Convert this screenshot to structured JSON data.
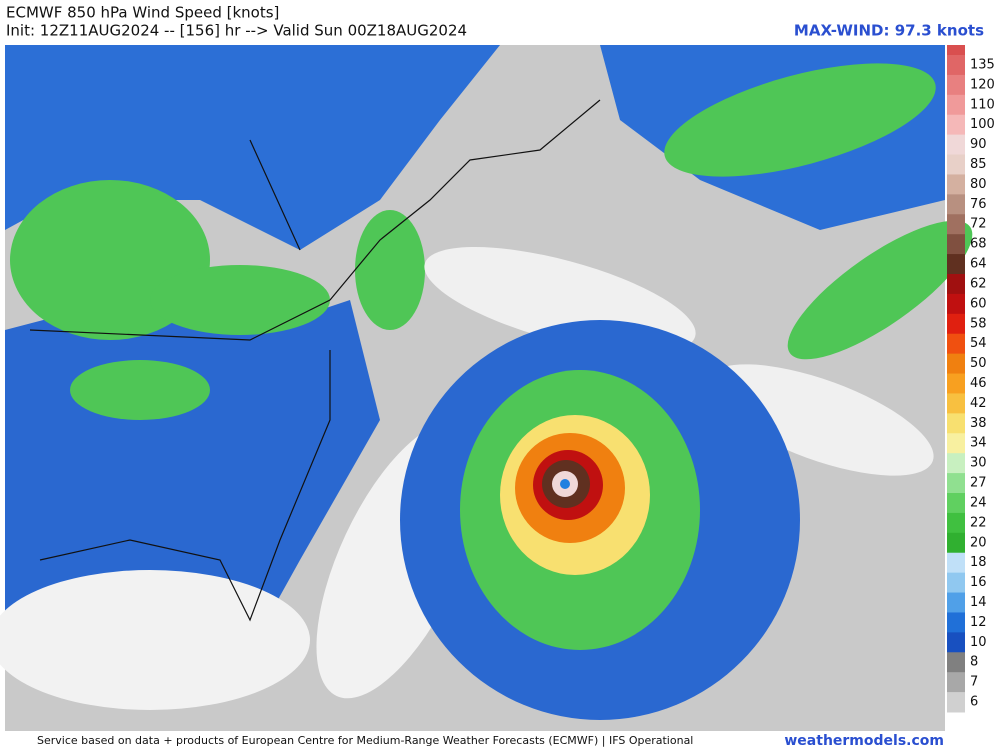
{
  "header": {
    "title": "ECMWF 850 hPa Wind Speed [knots]",
    "init": "Init: 12Z11AUG2024 -- [156] hr --> Valid Sun 00Z18AUG2024",
    "max_wind": "MAX-WIND: 97.3 knots"
  },
  "colorbar": {
    "labels": [
      135,
      120,
      110,
      100,
      90,
      85,
      80,
      76,
      72,
      68,
      64,
      62,
      60,
      58,
      54,
      50,
      46,
      42,
      38,
      34,
      30,
      27,
      24,
      22,
      20,
      18,
      16,
      14,
      12,
      10,
      8,
      7,
      6
    ]
  },
  "footer": {
    "credit": "Service based on data + products of European Centre for Medium-Range Weather Forecasts (ECMWF) | IFS Operational",
    "site": "weathermodels.com"
  }
}
